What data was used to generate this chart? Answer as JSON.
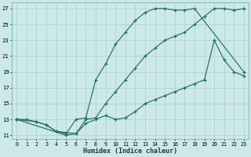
{
  "xlabel": "Humidex (Indice chaleur)",
  "bg_color": "#cce8e8",
  "grid_color": "#b0d4d4",
  "line_color": "#1e7060",
  "xlim": [
    -0.5,
    23.5
  ],
  "ylim": [
    10.5,
    27.8
  ],
  "xticks": [
    0,
    1,
    2,
    3,
    4,
    5,
    6,
    7,
    8,
    9,
    10,
    11,
    12,
    13,
    14,
    15,
    16,
    17,
    18,
    19,
    20,
    21,
    22,
    23
  ],
  "yticks": [
    11,
    13,
    15,
    17,
    19,
    21,
    23,
    25,
    27
  ],
  "line1": {
    "x": [
      0,
      1,
      2,
      3,
      4,
      5,
      6,
      7,
      8,
      9,
      10,
      11,
      12,
      13,
      14,
      15,
      16,
      17,
      18,
      23
    ],
    "y": [
      13,
      13,
      12.7,
      12.3,
      11.5,
      11.2,
      13,
      13.2,
      18,
      20,
      22.5,
      24,
      25.5,
      26.5,
      27,
      27,
      26.8,
      26.8,
      27,
      19
    ]
  },
  "line2": {
    "x": [
      0,
      2,
      3,
      4,
      6,
      7,
      8,
      9,
      10,
      11,
      12,
      13,
      14,
      15,
      16,
      17,
      18,
      19,
      20,
      21,
      22,
      23
    ],
    "y": [
      13,
      12.7,
      12.3,
      11.5,
      11.2,
      13,
      13.2,
      15,
      16.5,
      18,
      19.5,
      21,
      22,
      23,
      23.5,
      24,
      25,
      26,
      27,
      27,
      26.8,
      27
    ]
  },
  "line3": {
    "x": [
      0,
      5,
      6,
      7,
      8,
      9,
      10,
      11,
      12,
      13,
      14,
      15,
      16,
      17,
      18,
      19,
      20,
      21,
      22,
      23
    ],
    "y": [
      13,
      11,
      11.2,
      12.5,
      13,
      13.5,
      13,
      13.2,
      14,
      15,
      15.5,
      16,
      16.5,
      17,
      17.5,
      18,
      23,
      20.5,
      19,
      18.5
    ]
  }
}
